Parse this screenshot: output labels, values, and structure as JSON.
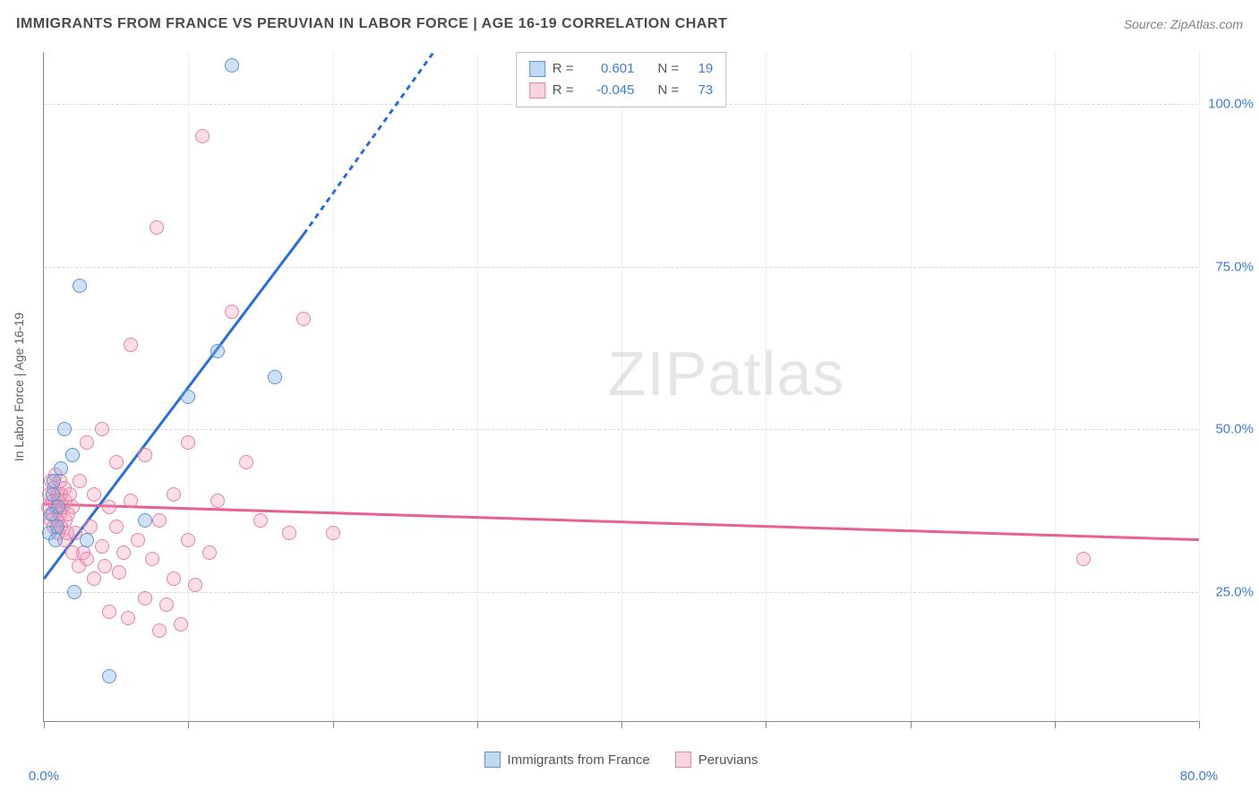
{
  "title": "IMMIGRANTS FROM FRANCE VS PERUVIAN IN LABOR FORCE | AGE 16-19 CORRELATION CHART",
  "source": "Source: ZipAtlas.com",
  "y_axis_title": "In Labor Force | Age 16-19",
  "watermark_a": "ZIP",
  "watermark_b": "atlas",
  "legend_top": {
    "r_label": "R = ",
    "n_label": "N = ",
    "rows": [
      {
        "swatch": "blue",
        "r": "0.601",
        "n": "19"
      },
      {
        "swatch": "pink",
        "r": "-0.045",
        "n": "73"
      }
    ]
  },
  "legend_bottom": [
    {
      "swatch": "blue",
      "label": "Immigrants from France"
    },
    {
      "swatch": "pink",
      "label": "Peruvians"
    }
  ],
  "chart": {
    "type": "scatter",
    "xlim": [
      0,
      80
    ],
    "ylim": [
      5,
      108
    ],
    "x_ticks": [
      0,
      10,
      20,
      30,
      40,
      50,
      60,
      70,
      80
    ],
    "x_tick_labels": {
      "0": "0.0%",
      "80": "80.0%"
    },
    "y_gridlines": [
      25,
      50,
      75,
      100
    ],
    "y_tick_labels": {
      "25": "25.0%",
      "50": "50.0%",
      "75": "75.0%",
      "100": "100.0%"
    },
    "background_color": "#ffffff",
    "grid_color": "#d8d8d8",
    "axis_color": "#888888",
    "label_color": "#3b7dd8",
    "marker_radius": 8,
    "series": {
      "blue": {
        "fill": "rgba(120,170,230,0.35)",
        "stroke": "#5a96d6",
        "trend_color": "#2b6fd4",
        "trend": {
          "x1": 0,
          "y1": 27,
          "x2_solid": 18,
          "y2_solid": 80,
          "x2_dash": 27,
          "y2_dash": 108
        },
        "points": [
          [
            0.4,
            34
          ],
          [
            0.5,
            37
          ],
          [
            0.6,
            40
          ],
          [
            0.7,
            42
          ],
          [
            0.8,
            33
          ],
          [
            0.9,
            35
          ],
          [
            1.0,
            38
          ],
          [
            1.2,
            44
          ],
          [
            1.4,
            50
          ],
          [
            2.0,
            46
          ],
          [
            2.1,
            25
          ],
          [
            2.5,
            72
          ],
          [
            3.0,
            33
          ],
          [
            4.5,
            12
          ],
          [
            7.0,
            36
          ],
          [
            10.0,
            55
          ],
          [
            12.0,
            62
          ],
          [
            13.0,
            106
          ],
          [
            16.0,
            58
          ]
        ]
      },
      "pink": {
        "fill": "rgba(240,150,180,0.30)",
        "stroke": "#e87fa8",
        "trend_color": "#e85f93",
        "trend": {
          "x1": 0,
          "y1": 38.5,
          "x2_solid": 80,
          "y2_solid": 33,
          "x2_dash": 80,
          "y2_dash": 33
        },
        "points": [
          [
            0.3,
            38
          ],
          [
            0.4,
            40
          ],
          [
            0.5,
            36
          ],
          [
            0.5,
            42
          ],
          [
            0.6,
            39
          ],
          [
            0.6,
            37
          ],
          [
            0.7,
            41
          ],
          [
            0.7,
            35
          ],
          [
            0.8,
            38
          ],
          [
            0.8,
            43
          ],
          [
            0.9,
            36
          ],
          [
            0.9,
            40
          ],
          [
            1.0,
            34
          ],
          [
            1.0,
            39
          ],
          [
            1.1,
            37
          ],
          [
            1.1,
            42
          ],
          [
            1.2,
            35
          ],
          [
            1.2,
            40
          ],
          [
            1.3,
            38
          ],
          [
            1.4,
            33
          ],
          [
            1.4,
            41
          ],
          [
            1.5,
            36
          ],
          [
            1.5,
            39
          ],
          [
            1.6,
            34
          ],
          [
            1.7,
            37
          ],
          [
            1.8,
            40
          ],
          [
            2.0,
            31
          ],
          [
            2.0,
            38
          ],
          [
            2.2,
            34
          ],
          [
            2.4,
            29
          ],
          [
            2.5,
            42
          ],
          [
            2.7,
            31
          ],
          [
            3.0,
            48
          ],
          [
            3.0,
            30
          ],
          [
            3.2,
            35
          ],
          [
            3.5,
            27
          ],
          [
            3.5,
            40
          ],
          [
            4.0,
            32
          ],
          [
            4.0,
            50
          ],
          [
            4.2,
            29
          ],
          [
            4.5,
            38
          ],
          [
            4.5,
            22
          ],
          [
            5.0,
            35
          ],
          [
            5.0,
            45
          ],
          [
            5.2,
            28
          ],
          [
            5.5,
            31
          ],
          [
            5.8,
            21
          ],
          [
            6.0,
            39
          ],
          [
            6.0,
            63
          ],
          [
            6.5,
            33
          ],
          [
            7.0,
            24
          ],
          [
            7.0,
            46
          ],
          [
            7.5,
            30
          ],
          [
            7.8,
            81
          ],
          [
            8.0,
            36
          ],
          [
            8.0,
            19
          ],
          [
            8.5,
            23
          ],
          [
            9.0,
            27
          ],
          [
            9.0,
            40
          ],
          [
            9.5,
            20
          ],
          [
            10.0,
            33
          ],
          [
            10.0,
            48
          ],
          [
            10.5,
            26
          ],
          [
            11.0,
            95
          ],
          [
            11.5,
            31
          ],
          [
            12.0,
            39
          ],
          [
            13.0,
            68
          ],
          [
            14.0,
            45
          ],
          [
            15.0,
            36
          ],
          [
            17.0,
            34
          ],
          [
            18.0,
            67
          ],
          [
            20.0,
            34
          ],
          [
            72.0,
            30
          ]
        ]
      }
    }
  }
}
